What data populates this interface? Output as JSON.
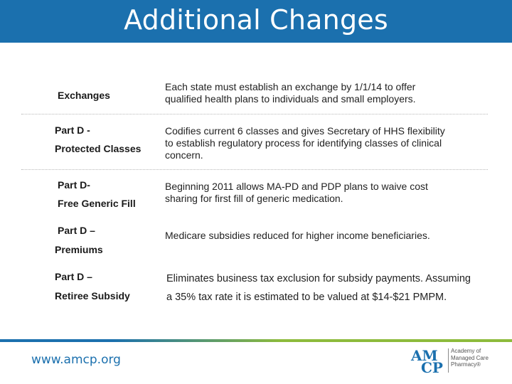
{
  "slide": {
    "title": "Additional Changes",
    "rows": [
      {
        "label_lines": [
          "Exchanges"
        ],
        "desc_lines": [
          "Each state must establish an exchange by 1/1/14 to offer",
          "qualified health plans to individuals and small employers."
        ]
      },
      {
        "label_lines": [
          "Part D -",
          "Protected Classes"
        ],
        "desc_lines": [
          "Codifies current 6 classes and gives Secretary of HHS flexibility",
          "to establish regulatory process for identifying classes of clinical",
          "concern."
        ]
      },
      {
        "label_lines": [
          "Part D-",
          "Free Generic Fill"
        ],
        "desc_lines": [
          "Beginning 2011 allows MA-PD and PDP plans to waive cost",
          "sharing for first fill of generic medication."
        ]
      },
      {
        "label_lines": [
          "Part D –",
          "Premiums"
        ],
        "desc_lines": [
          "Medicare subsidies reduced for higher income beneficiaries."
        ]
      },
      {
        "label_lines": [
          "Part D –",
          "Retiree Subsidy"
        ],
        "desc_lines": [
          "Eliminates business tax exclusion for subsidy payments. Assuming",
          "a 35% tax rate it is estimated to be valued at $14-$21 PMPM."
        ]
      }
    ]
  },
  "footer": {
    "url": "www.amcp.org",
    "logo_am": "AM",
    "logo_cp": "CP",
    "logo_lines": [
      "Academy of",
      "Managed Care",
      "Pharmacy®"
    ]
  },
  "colors": {
    "header_blue": "#1b70ae",
    "footer_green": "#8dbb3c"
  }
}
